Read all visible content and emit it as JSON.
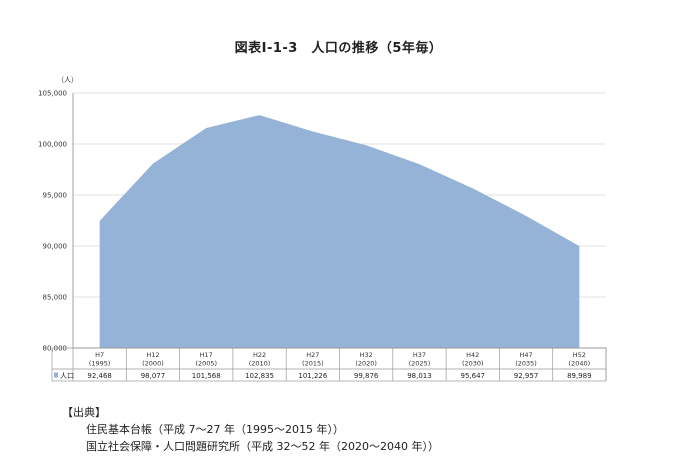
{
  "chart_data": {
    "type": "area",
    "title": "図表Ⅰ-1-3　人口の推移（5年毎）",
    "ylabel": "（人）",
    "ylim": [
      80000,
      105000
    ],
    "yticks": [
      80000,
      85000,
      90000,
      95000,
      100000,
      105000
    ],
    "ytick_labels": [
      "80,000",
      "85,000",
      "90,000",
      "95,000",
      "100,000",
      "105,000"
    ],
    "categories": [
      {
        "era": "H7",
        "year": "(1995)"
      },
      {
        "era": "H12",
        "year": "(2000)"
      },
      {
        "era": "H17",
        "year": "(2005)"
      },
      {
        "era": "H22",
        "year": "(2010)"
      },
      {
        "era": "H27",
        "year": "(2015)"
      },
      {
        "era": "H32",
        "year": "(2020)"
      },
      {
        "era": "H37",
        "year": "(2025)"
      },
      {
        "era": "H42",
        "year": "(2030)"
      },
      {
        "era": "H47",
        "year": "(2035)"
      },
      {
        "era": "H52",
        "year": "(2040)"
      }
    ],
    "series": [
      {
        "name": "人口",
        "values": [
          92468,
          98077,
          101568,
          102835,
          101226,
          99876,
          98013,
          95647,
          92957,
          89989
        ],
        "value_labels": [
          "92,468",
          "98,077",
          "101,568",
          "102,835",
          "101,226",
          "99,876",
          "98,013",
          "95,647",
          "92,957",
          "89,989"
        ]
      }
    ],
    "fill_color": "#95b3d7",
    "grid": true,
    "legend": "data-table"
  },
  "source": {
    "heading": "【出典】",
    "lines": [
      "住民基本台帳（平成 7～27 年（1995～2015 年））",
      "国立社会保障・人口問題研究所（平成 32～52 年（2020～2040 年））"
    ]
  }
}
